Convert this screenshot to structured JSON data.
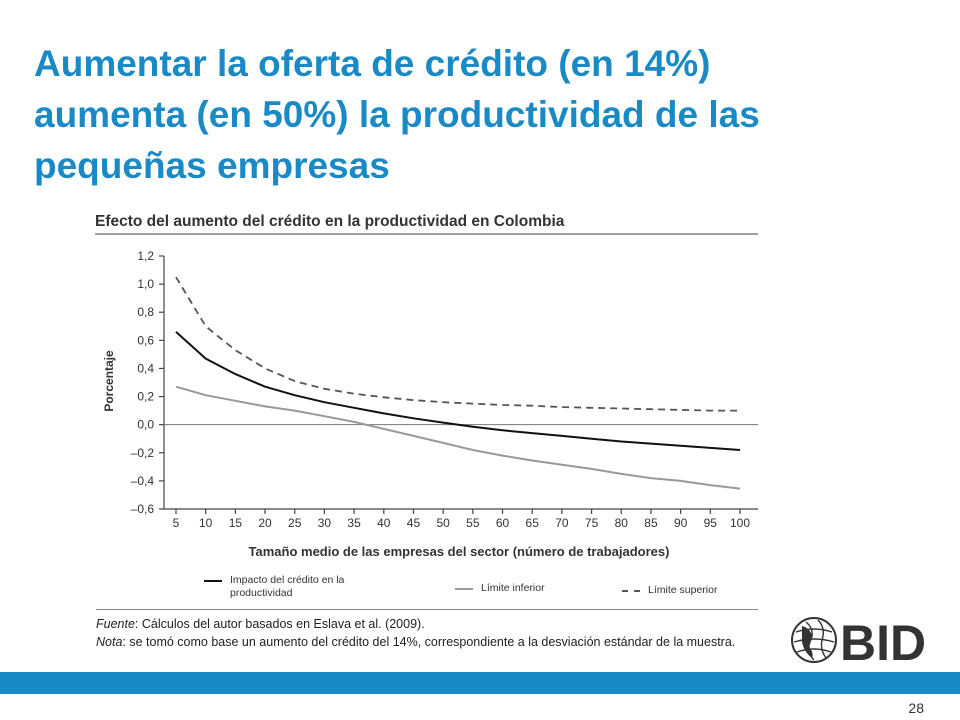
{
  "slide": {
    "title_lines": [
      "Aumentar la oferta de crédito (en 14%)",
      "aumenta (en 50%) la productividad de las",
      "pequeñas empresas"
    ],
    "page_number": "28",
    "logo_text": "BID",
    "accent_color": "#1a8ac7"
  },
  "chart_data": {
    "type": "line",
    "title": "Efecto del aumento del crédito en la productividad en Colombia",
    "xlabel": "Tamaño medio de las empresas del sector (número de trabajadores)",
    "ylabel": "Porcentaje",
    "x": [
      5,
      10,
      15,
      20,
      25,
      30,
      35,
      40,
      45,
      50,
      55,
      60,
      65,
      70,
      75,
      80,
      85,
      90,
      95,
      100
    ],
    "x_tick_labels": [
      "5",
      "10",
      "15",
      "20",
      "25",
      "30",
      "35",
      "40",
      "45",
      "50",
      "55",
      "60",
      "65",
      "70",
      "75",
      "80",
      "85",
      "90",
      "95",
      "100"
    ],
    "ylim": [
      -0.6,
      1.2
    ],
    "y_ticks": [
      1.2,
      1.0,
      0.8,
      0.6,
      0.4,
      0.2,
      0.0,
      -0.2,
      -0.4,
      -0.6
    ],
    "y_tick_labels": [
      "1,2",
      "1,0",
      "0,8",
      "0,6",
      "0,4",
      "0,2",
      "0,0",
      "–0,2",
      "–0,4",
      "–0,6"
    ],
    "grid": false,
    "legend_position": "bottom",
    "series": [
      {
        "name": "Impacto del crédito en la productividad",
        "style": "solid",
        "color": "#111111",
        "values": [
          0.66,
          0.47,
          0.36,
          0.27,
          0.21,
          0.16,
          0.12,
          0.08,
          0.045,
          0.015,
          -0.015,
          -0.04,
          -0.06,
          -0.08,
          -0.1,
          -0.12,
          -0.135,
          -0.15,
          -0.165,
          -0.18
        ]
      },
      {
        "name": "Límite inferior",
        "style": "solid",
        "color": "#999999",
        "values": [
          0.27,
          0.21,
          0.17,
          0.13,
          0.1,
          0.06,
          0.02,
          -0.03,
          -0.08,
          -0.13,
          -0.18,
          -0.22,
          -0.255,
          -0.285,
          -0.315,
          -0.35,
          -0.38,
          -0.4,
          -0.43,
          -0.455
        ]
      },
      {
        "name": "Límite superior",
        "style": "dashed",
        "color": "#555555",
        "values": [
          1.05,
          0.7,
          0.53,
          0.4,
          0.31,
          0.255,
          0.22,
          0.195,
          0.175,
          0.16,
          0.15,
          0.14,
          0.135,
          0.125,
          0.12,
          0.115,
          0.11,
          0.105,
          0.1,
          0.1
        ]
      }
    ],
    "notes": {
      "source_label": "Fuente",
      "source_text": ": Cálculos del autor basados en Eslava et al. (2009).",
      "note_label": "Nota",
      "note_text": ": se tomó como base un aumento del crédito del 14%, correspondiente a la desviación estándar de la muestra."
    }
  }
}
